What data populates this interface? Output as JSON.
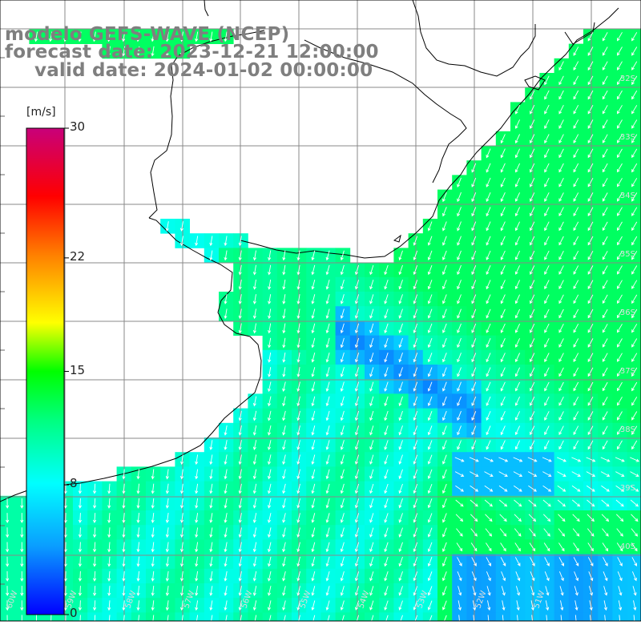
{
  "title": {
    "line1": "modelo GEFS-WAVE (NCEP)",
    "line2": "forecast date: 2023-12-21 12:00:00",
    "line3": "valid date: 2024-01-02 00:00:00"
  },
  "colorbar": {
    "units": "[m/s]",
    "ticks": [
      "30",
      "22",
      "15",
      "8",
      "0"
    ],
    "tick_values": [
      30,
      22,
      15,
      8,
      0
    ],
    "range": [
      0,
      30
    ],
    "colors": [
      "#0000ff",
      "#0a9dff",
      "#00ffff",
      "#00ff00",
      "#ffff00",
      "#ff7f00",
      "#ff0000",
      "#c8007a"
    ]
  },
  "map": {
    "latitude_labels": [
      "32S",
      "33S",
      "34S",
      "35S",
      "36S",
      "37S",
      "38S",
      "39S",
      "40S"
    ],
    "longitude_labels": [
      "60W",
      "59W",
      "58W",
      "57W",
      "56W",
      "55W",
      "54W",
      "53W",
      "52W",
      "51W"
    ],
    "land_color": "#ffffff",
    "coastline_color": "#000000",
    "grid_color": "#777777",
    "vector_color": "#ffffff"
  }
}
